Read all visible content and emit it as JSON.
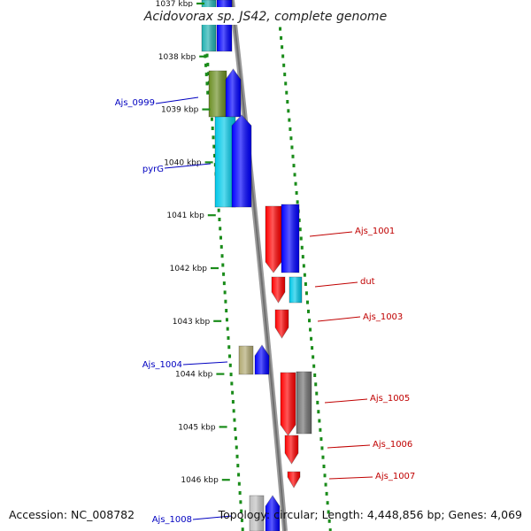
{
  "title": "Acidovorax sp. JS42, complete genome",
  "ticks": [
    {
      "label": "1037 kbp",
      "kbp": 1037
    },
    {
      "label": "1038 kbp",
      "kbp": 1038
    },
    {
      "label": "1039 kbp",
      "kbp": 1039
    },
    {
      "label": "1040 kbp",
      "kbp": 1040
    },
    {
      "label": "1041 kbp",
      "kbp": 1041
    },
    {
      "label": "1042 kbp",
      "kbp": 1042
    },
    {
      "label": "1043 kbp",
      "kbp": 1043
    },
    {
      "label": "1044 kbp",
      "kbp": 1044
    },
    {
      "label": "1045 kbp",
      "kbp": 1045
    },
    {
      "label": "1046 kbp",
      "kbp": 1046
    }
  ],
  "labels": [
    {
      "text": "Ajs_0999",
      "side": "left",
      "strand": "forward"
    },
    {
      "text": "pyrG",
      "side": "left",
      "strand": "forward"
    },
    {
      "text": "Ajs_1001",
      "side": "right",
      "strand": "reverse"
    },
    {
      "text": "dut",
      "side": "right",
      "strand": "reverse"
    },
    {
      "text": "Ajs_1003",
      "side": "right",
      "strand": "reverse"
    },
    {
      "text": "Ajs_1004",
      "side": "left",
      "strand": "forward"
    },
    {
      "text": "Ajs_1005",
      "side": "right",
      "strand": "reverse"
    },
    {
      "text": "Ajs_1006",
      "side": "right",
      "strand": "reverse"
    },
    {
      "text": "Ajs_1007",
      "side": "right",
      "strand": "reverse"
    },
    {
      "text": "Ajs_1008",
      "side": "left",
      "strand": "forward"
    }
  ],
  "colors": {
    "forward_cds": "#0000ff",
    "reverse_cds": "#ff0000",
    "forward_label": "#0000c0",
    "reverse_label": "#c00000",
    "backbone": "#808080",
    "dots": "#1a8c1a",
    "cog_cyan": "#00c8e8",
    "cog_teal": "#20b0b0",
    "cog_olive": "#6b8e23",
    "cog_khaki": "#b0a870",
    "cog_gray": "#707070",
    "cog_silver": "#c0c0c0"
  },
  "footer": {
    "accession": "Accession: NC_008782",
    "summary": "Topology: circular; Length: 4,448,856 bp; Genes: 4,069"
  }
}
